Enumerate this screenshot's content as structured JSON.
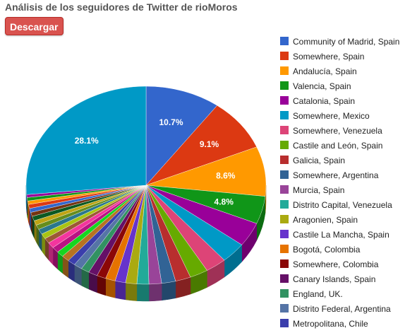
{
  "header": {
    "title": "Análisis de los seguidores de Twitter de rioMoros",
    "download_label": "Descargar"
  },
  "chart_data": {
    "type": "pie",
    "style": "3d-tilted",
    "legend_position": "right",
    "slices": [
      {
        "label": "Community of Madrid, Spain",
        "value": 10.7,
        "color": "#3366cc",
        "data_label": "10.7%"
      },
      {
        "label": "Somewhere, Spain",
        "value": 9.1,
        "color": "#dc3912",
        "data_label": "9.1%"
      },
      {
        "label": "Andalucía, Spain",
        "value": 8.6,
        "color": "#ff9900",
        "data_label": "8.6%"
      },
      {
        "label": "Valencia, Spain",
        "value": 4.8,
        "color": "#109618",
        "data_label": "4.8%"
      },
      {
        "label": "Catalonia, Spain",
        "value": 4.2,
        "color": "#990099",
        "data_label": ""
      },
      {
        "label": "Somewhere, Mexico",
        "value": 3.6,
        "color": "#0099c6",
        "data_label": ""
      },
      {
        "label": "Somewhere, Venezuela",
        "value": 3.0,
        "color": "#dd4477",
        "data_label": ""
      },
      {
        "label": "Castile and León, Spain",
        "value": 2.6,
        "color": "#66aa00",
        "data_label": ""
      },
      {
        "label": "Galicia, Spain",
        "value": 2.2,
        "color": "#b82e2e",
        "data_label": ""
      },
      {
        "label": "Somewhere, Argentina",
        "value": 2.0,
        "color": "#316395",
        "data_label": ""
      },
      {
        "label": "Murcia, Spain",
        "value": 1.8,
        "color": "#994499",
        "data_label": ""
      },
      {
        "label": "Distrito Capital, Venezuela",
        "value": 1.7,
        "color": "#22aa99",
        "data_label": ""
      },
      {
        "label": "Aragonien, Spain",
        "value": 1.6,
        "color": "#aaaa11",
        "data_label": ""
      },
      {
        "label": "Castile La Mancha, Spain",
        "value": 1.5,
        "color": "#6633cc",
        "data_label": ""
      },
      {
        "label": "Bogotá, Colombia",
        "value": 1.4,
        "color": "#e67300",
        "data_label": ""
      },
      {
        "label": "Somewhere, Colombia",
        "value": 1.3,
        "color": "#8b0707",
        "data_label": ""
      },
      {
        "label": "Canary Islands, Spain",
        "value": 1.3,
        "color": "#651067",
        "data_label": ""
      },
      {
        "label": "England, UK.",
        "value": 1.2,
        "color": "#329262",
        "data_label": ""
      },
      {
        "label": "Distrito Federal, Argentina",
        "value": 1.2,
        "color": "#5574a6",
        "data_label": ""
      },
      {
        "label": "Metropolitana, Chile",
        "value": 1.1,
        "color": "#3b3eac",
        "data_label": ""
      },
      {
        "label": "",
        "value": 1.1,
        "color": "#b77322",
        "data_label": ""
      },
      {
        "label": "",
        "value": 1.0,
        "color": "#16d620",
        "data_label": ""
      },
      {
        "label": "",
        "value": 1.0,
        "color": "#b91383",
        "data_label": ""
      },
      {
        "label": "",
        "value": 1.0,
        "color": "#f4359e",
        "data_label": ""
      },
      {
        "label": "",
        "value": 0.9,
        "color": "#9c5935",
        "data_label": ""
      },
      {
        "label": "",
        "value": 0.9,
        "color": "#a9c413",
        "data_label": ""
      },
      {
        "label": "",
        "value": 0.9,
        "color": "#2a778d",
        "data_label": ""
      },
      {
        "label": "",
        "value": 0.8,
        "color": "#668d1c",
        "data_label": ""
      },
      {
        "label": "",
        "value": 0.8,
        "color": "#bea413",
        "data_label": ""
      },
      {
        "label": "",
        "value": 0.8,
        "color": "#0c5922",
        "data_label": ""
      },
      {
        "label": "",
        "value": 0.7,
        "color": "#743411",
        "data_label": ""
      },
      {
        "label": "",
        "value": 0.7,
        "color": "#3366cc",
        "data_label": ""
      },
      {
        "label": "",
        "value": 0.7,
        "color": "#dc3912",
        "data_label": ""
      },
      {
        "label": "",
        "value": 0.6,
        "color": "#ff9900",
        "data_label": ""
      },
      {
        "label": "",
        "value": 0.6,
        "color": "#109618",
        "data_label": ""
      },
      {
        "label": "",
        "value": 0.5,
        "color": "#990099",
        "data_label": ""
      },
      {
        "label": "Somewhere, Mexico",
        "value": 28.1,
        "color": "#0099c6",
        "data_label": "28.1%"
      }
    ]
  }
}
